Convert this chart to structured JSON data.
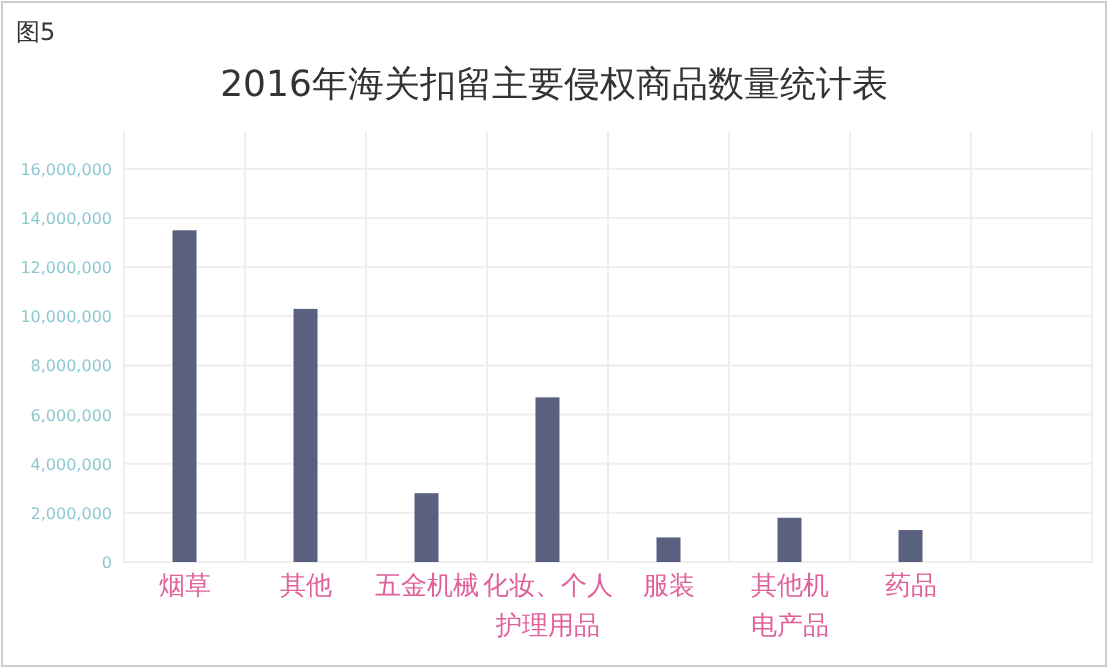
{
  "chart_data": {
    "type": "bar",
    "title": "2016年海关扣留主要侵权商品数量统计表",
    "annotations": [
      "图5"
    ],
    "categories": [
      "烟草",
      "其他",
      "五金机械",
      "化妆、个人护理用品",
      "服装",
      "其他机电产品",
      "药品",
      null
    ],
    "values": [
      13500000,
      10300000,
      2800000,
      6700000,
      1000000,
      1800000,
      1300000,
      null
    ],
    "color": "#5a6080",
    "ylim": [
      0,
      17500000
    ],
    "yticks": [
      0,
      {
        "value": 2000000,
        "label": "2,000,000"
      },
      {
        "value": 4000000,
        "label": "4,000,000"
      },
      {
        "value": 6000000,
        "label": "6,000,000"
      },
      {
        "value": 8000000,
        "label": "8,000,000"
      },
      {
        "value": 10000000,
        "label": "10,000,000"
      },
      {
        "value": 12000000,
        "label": "12,000,000"
      },
      {
        "value": 14000000,
        "label": "14,000,000"
      },
      {
        "value": 16000000,
        "label": "16,000,000"
      }
    ],
    "grid": true
  }
}
